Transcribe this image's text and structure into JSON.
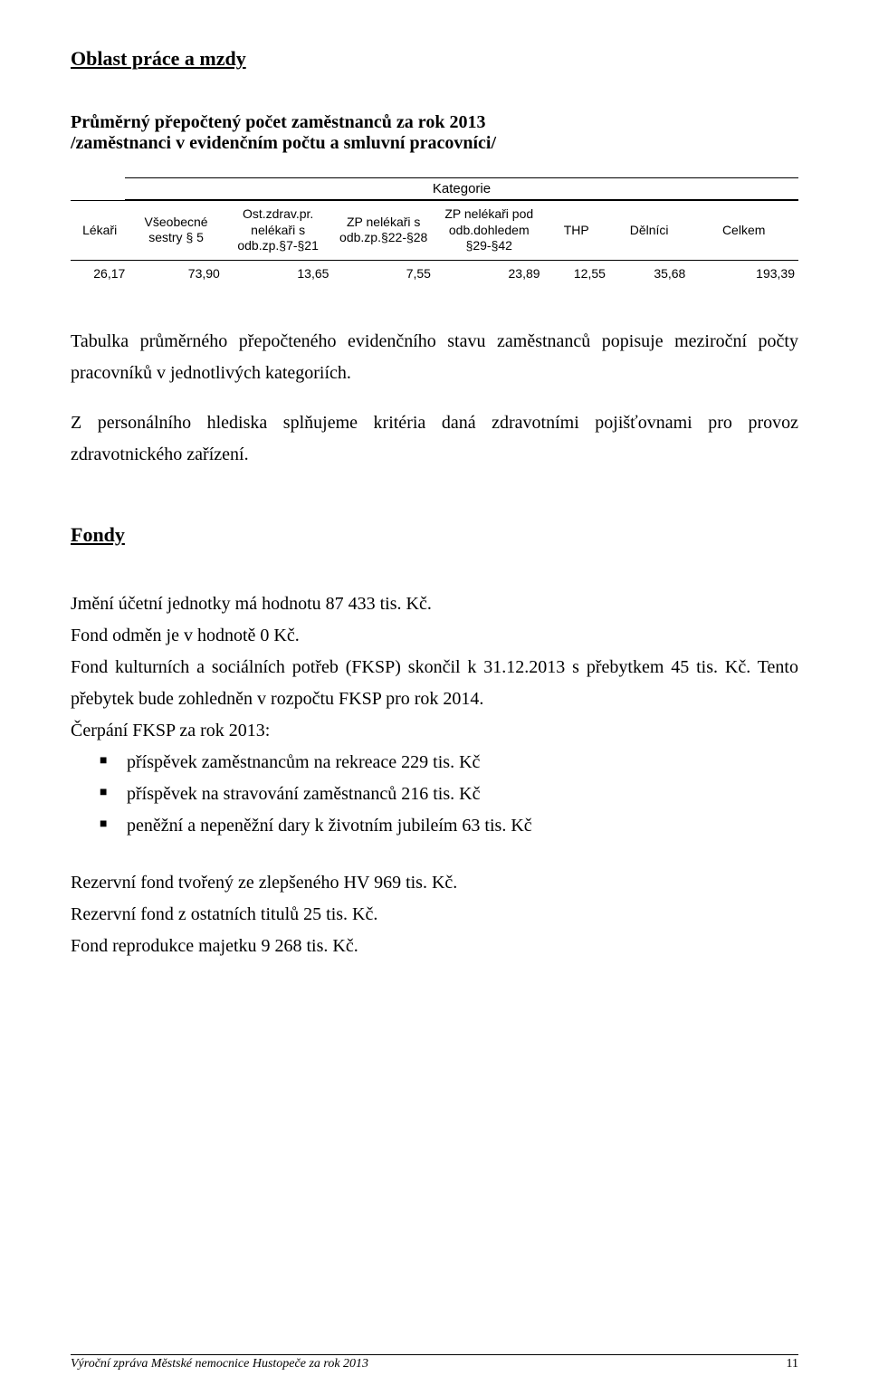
{
  "section_title": "Oblast práce a mzdy",
  "sub_title_line1": "Průměrný přepočtený počet zaměstnanců za rok 2013",
  "sub_title_line2": "/zaměstnanci v evidenčním počtu a smluvní pracovníci/",
  "kategorie_label": "Kategorie",
  "table": {
    "headers": [
      "Lékaři",
      "Všeobecné sestry § 5",
      "Ost.zdrav.pr. nelékaři s odb.zp.§7-§21",
      "ZP nelékaři s odb.zp.§22-§28",
      "ZP nelékaři pod odb.dohledem §29-§42",
      "THP",
      "Dělníci",
      "Celkem"
    ],
    "row": [
      "26,17",
      "73,90",
      "13,65",
      "7,55",
      "23,89",
      "12,55",
      "35,68",
      "193,39"
    ],
    "col_widths_pct": [
      8,
      13,
      15,
      14,
      15,
      9,
      11,
      15
    ]
  },
  "para1": "Tabulka průměrného přepočteného evidenčního stavu zaměstnanců popisuje meziroční počty pracovníků v jednotlivých kategoriích.",
  "para2": "Z personálního hlediska splňujeme kritéria daná zdravotními pojišťovnami pro provoz zdravotnického zařízení.",
  "fondy_title": "Fondy",
  "fondy_p1": "Jmění účetní jednotky má hodnotu 87 433 tis. Kč.",
  "fondy_p2": "Fond odměn je v hodnotě 0 Kč.",
  "fondy_p3": "Fond kulturních a sociálních potřeb (FKSP) skončil k 31.12.2013 s přebytkem 45 tis. Kč. Tento přebytek  bude  zohledněn v  rozpočtu  FKSP pro  rok 2014.",
  "fondy_p4": "Čerpání FKSP za rok 2013:",
  "bullets": [
    "příspěvek zaměstnancům na rekreace 229 tis. Kč",
    "příspěvek na stravování zaměstnanců 216 tis. Kč",
    "peněžní a nepeněžní dary k životním jubileím 63 tis. Kč"
  ],
  "fondy_p5": "Rezervní fond tvořený ze zlepšeného HV 969 tis. Kč.",
  "fondy_p6": "Rezervní fond z ostatních titulů 25 tis. Kč.",
  "fondy_p7": "Fond reprodukce majetku 9 268 tis. Kč.",
  "footer_text": "Výroční zpráva Městské nemocnice Hustopeče za rok 2013",
  "page_number": "11"
}
